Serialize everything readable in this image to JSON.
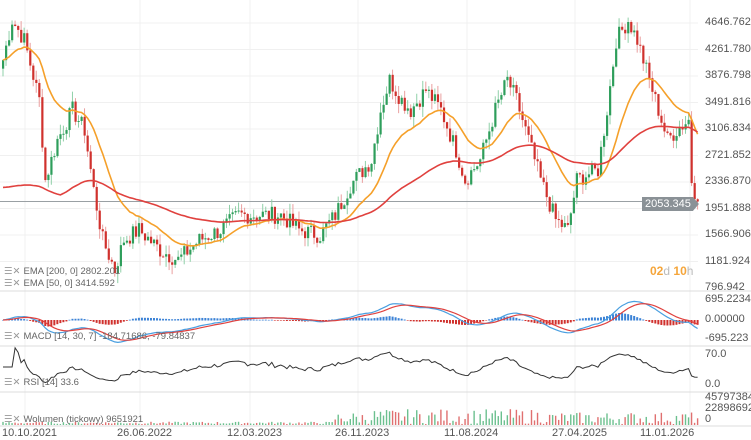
{
  "chart_data": {
    "type": "candlestick",
    "interval": "weekly",
    "price_axis_ticks": [
      "4646.762",
      "4261.780",
      "3876.798",
      "3491.816",
      "3106.834",
      "2721.852",
      "2336.870",
      "1951.888",
      "1566.906",
      "1181.924",
      "796.942"
    ],
    "ylim": [
      796.942,
      5000
    ],
    "date_ticks": [
      "10.10.2021",
      "26.06.2022",
      "12.03.2023",
      "26.11.2023",
      "11.08.2024",
      "27.04.2025",
      "11.01.2026"
    ],
    "close_keypoints": {
      "week": [
        0,
        3,
        7,
        12,
        14,
        18,
        23,
        27,
        30,
        33,
        37,
        40,
        45,
        52,
        58,
        65,
        72,
        78,
        85,
        92,
        98,
        105,
        110,
        115,
        122,
        125,
        128,
        132,
        135,
        140,
        145,
        150,
        153,
        158,
        163,
        167,
        170,
        173,
        178,
        183,
        187,
        190,
        193,
        197,
        200,
        203,
        207,
        210,
        213,
        217,
        220,
        223,
        227,
        228,
        230
      ],
      "close": [
        4109,
        4690,
        4400,
        3528,
        2365,
        2947,
        3383,
        3092,
        2220,
        1494,
        1058,
        1494,
        1639,
        1349,
        1203,
        1494,
        1639,
        1857,
        1857,
        1857,
        1639,
        1567,
        1857,
        2293,
        2656,
        3383,
        3818,
        3528,
        3383,
        3673,
        3383,
        2801,
        2365,
        2656,
        3383,
        3818,
        3528,
        3092,
        2365,
        1784,
        1639,
        2365,
        2438,
        2511,
        3383,
        4400,
        4690,
        4400,
        3964,
        3383,
        2947,
        3092,
        3237,
        2365,
        2053
      ]
    },
    "current_price": "2053.345",
    "countdown": {
      "days": "02",
      "d": "d",
      "hours": "10",
      "h": "h"
    },
    "indicators": {
      "ema200": {
        "label": "EMA [200, 0] 2802.201",
        "color": "#e0413e"
      },
      "ema50": {
        "label": "EMA [50, 0] 3414.592",
        "color": "#f5a02a"
      },
      "macd": {
        "label": "MACD [14, 30, 7] -184.71686, -79.84837",
        "ticks": [
          "695.2234",
          "0.00000",
          "-695.223"
        ]
      },
      "rsi": {
        "label": "RSI [14] 33.6",
        "ticks": [
          "70.0",
          "0.0"
        ]
      },
      "volume": {
        "label": "Wolumen (tickowy) 9651921",
        "ticks": [
          "45797384",
          "22898692",
          "0"
        ]
      }
    },
    "colors": {
      "up": "#2e9e5b",
      "down": "#d0312d"
    }
  }
}
